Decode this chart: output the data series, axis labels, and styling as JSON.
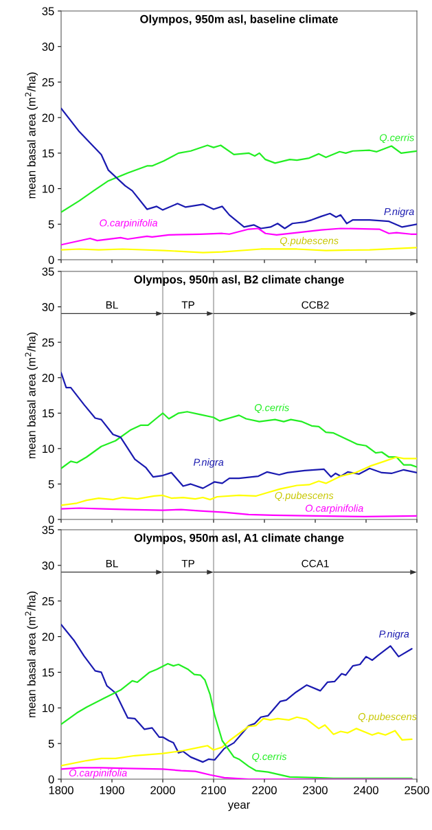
{
  "chart_data": [
    {
      "type": "line",
      "title": "Olympos, 950m asl, baseline climate",
      "ylabel": "mean basal area (m$^{2}$/ha)",
      "xlim": [
        1800,
        2500
      ],
      "xticks": [
        1800,
        1900,
        2000,
        2100,
        2200,
        2300,
        2400,
        2500
      ],
      "ylim": [
        0,
        35
      ],
      "yticks": [
        0,
        5,
        10,
        15,
        20,
        25,
        30,
        35
      ],
      "tick_labels": "y",
      "grid": false,
      "legend": false,
      "marker": "none",
      "line_style": "solid",
      "series": [
        {
          "name": "Q.cerris",
          "color": "#22ee22",
          "x": [
            1800,
            1836,
            1864,
            1893,
            1931,
            1969,
            1979,
            2002,
            2031,
            2055,
            2088,
            2100,
            2114,
            2140,
            2169,
            2181,
            2190,
            2202,
            2221,
            2250,
            2264,
            2288,
            2307,
            2321,
            2348,
            2360,
            2374,
            2407,
            2421,
            2450,
            2469,
            2500
          ],
          "values": [
            6.7,
            8.3,
            9.7,
            11.1,
            12.2,
            13.2,
            13.2,
            13.9,
            15.0,
            15.3,
            16.1,
            15.8,
            16.1,
            14.8,
            15.0,
            14.6,
            15.0,
            14.1,
            13.6,
            14.1,
            14.0,
            14.3,
            14.9,
            14.4,
            15.2,
            15.0,
            15.3,
            15.4,
            15.2,
            16.0,
            15.0,
            15.3
          ]
        },
        {
          "name": "P.nigra",
          "color": "#1a1ab0",
          "x": [
            1800,
            1836,
            1879,
            1893,
            1926,
            1940,
            1969,
            1988,
            2000,
            2029,
            2045,
            2079,
            2100,
            2117,
            2131,
            2160,
            2179,
            2193,
            2212,
            2226,
            2240,
            2255,
            2279,
            2293,
            2312,
            2329,
            2341,
            2350,
            2362,
            2374,
            2407,
            2445,
            2471,
            2500
          ],
          "values": [
            21.3,
            18.0,
            14.8,
            12.6,
            10.4,
            9.7,
            7.1,
            7.5,
            7.0,
            7.9,
            7.4,
            7.8,
            7.1,
            7.5,
            6.3,
            4.6,
            4.9,
            4.4,
            4.6,
            5.1,
            4.4,
            5.1,
            5.3,
            5.6,
            6.1,
            6.5,
            6.0,
            6.3,
            5.1,
            5.6,
            5.6,
            5.4,
            4.6,
            5.0
          ]
        },
        {
          "name": "O.carpinifolia",
          "color": "#ff00ff",
          "x": [
            1800,
            1857,
            1871,
            1917,
            1931,
            1969,
            1979,
            2012,
            2074,
            2117,
            2131,
            2169,
            2188,
            2202,
            2224,
            2264,
            2312,
            2350,
            2426,
            2445,
            2460,
            2488,
            2500
          ],
          "values": [
            2.1,
            3.0,
            2.7,
            3.1,
            2.9,
            3.3,
            3.2,
            3.5,
            3.6,
            3.7,
            3.6,
            4.3,
            4.4,
            3.7,
            3.5,
            3.8,
            4.2,
            4.4,
            4.3,
            3.7,
            3.8,
            3.6,
            3.6
          ]
        },
        {
          "name": "Q.pubescens",
          "color": "#ffff00",
          "x": [
            1800,
            1836,
            1874,
            1921,
            2002,
            2079,
            2117,
            2193,
            2264,
            2321,
            2407,
            2500
          ],
          "values": [
            1.4,
            1.5,
            1.4,
            1.5,
            1.3,
            1.0,
            1.1,
            1.5,
            1.5,
            1.3,
            1.4,
            1.7
          ]
        }
      ]
    },
    {
      "type": "line",
      "title": "Olympos, 950m asl, B2 climate change",
      "ylabel": "mean basal area (m$^{2}$/ha)",
      "xlim": [
        1800,
        2500
      ],
      "xticks": [
        1800,
        1900,
        2000,
        2100,
        2200,
        2300,
        2400,
        2500
      ],
      "ylim": [
        0,
        35
      ],
      "yticks": [
        0,
        5,
        10,
        15,
        20,
        25,
        30,
        35
      ],
      "tick_labels": "y",
      "grid": false,
      "legend": false,
      "marker": "none",
      "line_style": "solid",
      "ref_lines": [
        {
          "axis": "x",
          "value": 2000,
          "color": "#bbbbbb"
        },
        {
          "axis": "x",
          "value": 2100,
          "color": "#bbbbbb"
        }
      ],
      "annotations": [
        "BL",
        "TP",
        "CCB2"
      ],
      "series": [
        {
          "name": "Q.cerris",
          "color": "#22ee22",
          "x": [
            1800,
            1819,
            1831,
            1850,
            1879,
            1907,
            1936,
            1957,
            1971,
            1988,
            2000,
            2012,
            2031,
            2048,
            2074,
            2100,
            2112,
            2131,
            2150,
            2164,
            2190,
            2221,
            2238,
            2252,
            2274,
            2293,
            2307,
            2321,
            2336,
            2383,
            2400,
            2419,
            2431,
            2445,
            2460,
            2474,
            2488,
            2500
          ],
          "values": [
            7.2,
            8.2,
            8.0,
            8.8,
            10.3,
            11.1,
            12.6,
            13.3,
            13.3,
            14.3,
            15.0,
            14.2,
            15.0,
            15.2,
            14.8,
            14.4,
            13.9,
            14.3,
            14.7,
            14.2,
            13.8,
            14.1,
            13.8,
            14.1,
            13.8,
            13.2,
            13.1,
            12.3,
            12.2,
            10.6,
            10.4,
            9.4,
            9.5,
            8.8,
            8.8,
            7.7,
            7.7,
            7.4
          ]
        },
        {
          "name": "P.nigra",
          "color": "#1a1ab0",
          "x": [
            1800,
            1810,
            1819,
            1845,
            1867,
            1879,
            1902,
            1917,
            1945,
            1967,
            1981,
            2000,
            2017,
            2040,
            2055,
            2079,
            2102,
            2117,
            2131,
            2150,
            2188,
            2205,
            2229,
            2245,
            2279,
            2317,
            2331,
            2340,
            2350,
            2364,
            2386,
            2407,
            2431,
            2450,
            2474,
            2500
          ],
          "values": [
            20.7,
            18.6,
            18.6,
            16.2,
            14.3,
            14.1,
            12.0,
            11.6,
            8.5,
            7.3,
            6.0,
            6.2,
            6.6,
            4.7,
            5.0,
            4.4,
            5.3,
            5.1,
            5.8,
            5.8,
            6.1,
            6.7,
            6.3,
            6.6,
            6.9,
            7.1,
            6.0,
            6.5,
            6.1,
            6.7,
            6.4,
            7.2,
            6.6,
            6.5,
            7.0,
            6.6
          ]
        },
        {
          "name": "Q.pubescens",
          "color": "#ffff00",
          "x": [
            1800,
            1831,
            1850,
            1874,
            1902,
            1921,
            1950,
            1983,
            2000,
            2017,
            2040,
            2064,
            2079,
            2093,
            2107,
            2150,
            2183,
            2207,
            2231,
            2264,
            2288,
            2307,
            2321,
            2350,
            2379,
            2407,
            2436,
            2460,
            2474,
            2500
          ],
          "values": [
            2.0,
            2.3,
            2.7,
            3.0,
            2.8,
            3.1,
            2.9,
            3.3,
            3.4,
            3.0,
            3.1,
            2.9,
            3.1,
            2.8,
            3.2,
            3.4,
            3.3,
            3.8,
            4.3,
            4.8,
            4.9,
            5.4,
            5.1,
            6.1,
            6.6,
            7.5,
            8.2,
            8.8,
            8.6,
            8.6
          ]
        },
        {
          "name": "O.carpinifolia",
          "color": "#ff00ff",
          "x": [
            1800,
            1836,
            1883,
            1931,
            2000,
            2036,
            2074,
            2121,
            2169,
            2217,
            2302,
            2398,
            2500
          ],
          "values": [
            1.5,
            1.6,
            1.5,
            1.4,
            1.3,
            1.4,
            1.2,
            1.0,
            0.7,
            0.6,
            0.5,
            0.4,
            0.5
          ]
        }
      ]
    },
    {
      "type": "line",
      "title": "Olympos, 950m asl, A1 climate change",
      "xlabel": "year",
      "ylabel": "mean basal area (m$^{2}$/ha)",
      "xlim": [
        1800,
        2500
      ],
      "xticks": [
        1800,
        1900,
        2000,
        2100,
        2200,
        2300,
        2400,
        2500
      ],
      "ylim": [
        0,
        35
      ],
      "yticks": [
        0,
        5,
        10,
        15,
        20,
        25,
        30,
        35
      ],
      "grid": false,
      "legend": false,
      "marker": "none",
      "line_style": "solid",
      "ref_lines": [
        {
          "axis": "x",
          "value": 2000,
          "color": "#bbbbbb"
        },
        {
          "axis": "x",
          "value": 2100,
          "color": "#bbbbbb"
        }
      ],
      "annotations": [
        "BL",
        "TP",
        "CCA1"
      ],
      "series": [
        {
          "name": "P.nigra",
          "color": "#1a1ab0",
          "x": [
            1800,
            1826,
            1845,
            1867,
            1879,
            1890,
            1907,
            1931,
            1945,
            1964,
            1979,
            1993,
            2000,
            2012,
            2021,
            2031,
            2040,
            2055,
            2079,
            2090,
            2102,
            2121,
            2140,
            2169,
            2181,
            2193,
            2207,
            2231,
            2243,
            2262,
            2283,
            2310,
            2324,
            2338,
            2352,
            2360,
            2374,
            2388,
            2400,
            2412,
            2424,
            2448,
            2464,
            2490
          ],
          "values": [
            21.7,
            19.4,
            17.3,
            15.2,
            15.0,
            13.1,
            12.1,
            8.6,
            8.5,
            7.0,
            7.2,
            5.9,
            5.9,
            5.4,
            5.1,
            3.7,
            3.9,
            3.1,
            2.4,
            2.8,
            2.7,
            4.3,
            5.1,
            7.5,
            7.8,
            8.7,
            8.9,
            10.9,
            11.1,
            12.2,
            13.2,
            12.4,
            13.6,
            13.7,
            14.8,
            14.6,
            15.9,
            16.1,
            17.2,
            16.7,
            17.4,
            18.7,
            17.2,
            18.3
          ]
        },
        {
          "name": "Q.pubescens",
          "color": "#ffff00",
          "x": [
            1800,
            1850,
            1879,
            1907,
            1945,
            2000,
            2040,
            2074,
            2088,
            2100,
            2117,
            2131,
            2169,
            2183,
            2198,
            2212,
            2226,
            2248,
            2264,
            2283,
            2307,
            2319,
            2336,
            2350,
            2364,
            2381,
            2398,
            2412,
            2424,
            2438,
            2457,
            2471,
            2490
          ],
          "values": [
            1.9,
            2.6,
            2.9,
            2.9,
            3.3,
            3.6,
            4.0,
            4.5,
            4.7,
            4.1,
            4.5,
            5.4,
            7.4,
            7.5,
            8.5,
            8.3,
            8.5,
            8.3,
            8.7,
            8.4,
            7.1,
            7.6,
            6.3,
            6.7,
            6.5,
            7.1,
            6.6,
            6.2,
            6.5,
            6.2,
            6.8,
            5.5,
            5.6
          ]
        },
        {
          "name": "Q.cerris",
          "color": "#22ee22",
          "x": [
            1800,
            1831,
            1850,
            1883,
            1917,
            1940,
            1950,
            1974,
            1988,
            2010,
            2021,
            2031,
            2050,
            2062,
            2074,
            2083,
            2093,
            2102,
            2117,
            2140,
            2150,
            2169,
            2183,
            2207,
            2250,
            2302,
            2336,
            2490
          ],
          "values": [
            7.7,
            9.3,
            10.1,
            11.3,
            12.5,
            13.8,
            13.6,
            15.0,
            15.4,
            16.2,
            15.9,
            16.1,
            15.4,
            14.7,
            14.6,
            13.9,
            11.9,
            9.0,
            5.4,
            3.1,
            2.8,
            1.8,
            1.2,
            1.0,
            0.3,
            0.2,
            0.1,
            0.1
          ]
        },
        {
          "name": "O.carpinifolia",
          "color": "#ff00ff",
          "x": [
            1800,
            1836,
            1879,
            1931,
            2000,
            2036,
            2064,
            2093,
            2121,
            2169,
            2490
          ],
          "values": [
            1.4,
            1.6,
            1.6,
            1.5,
            1.4,
            1.2,
            1.1,
            0.6,
            0.2,
            0.0,
            0.0
          ]
        }
      ]
    }
  ]
}
